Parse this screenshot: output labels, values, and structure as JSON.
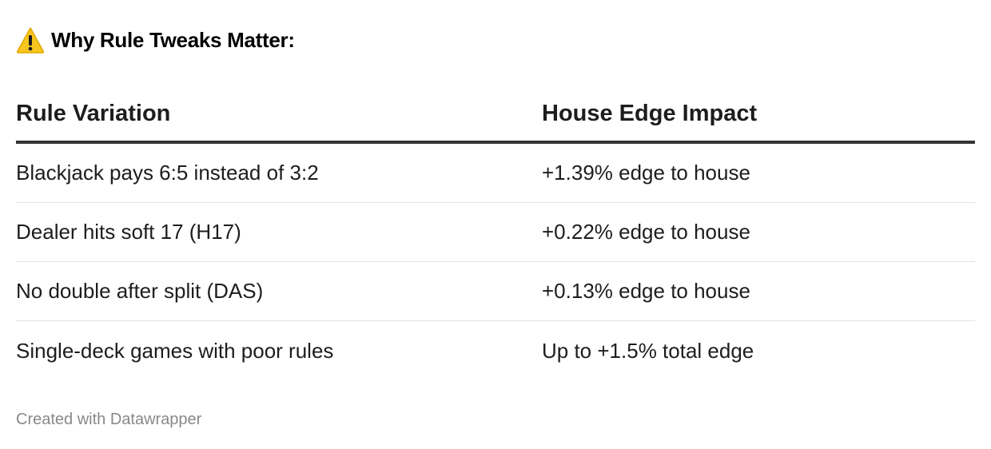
{
  "title": {
    "icon": "warning-icon",
    "text": "Why Rule Tweaks Matter:"
  },
  "chart_data": {
    "type": "table",
    "title": "Why Rule Tweaks Matter:",
    "columns": [
      "Rule Variation",
      "House Edge Impact"
    ],
    "rows": [
      [
        "Blackjack pays 6:5 instead of 3:2",
        "+1.39% edge to house"
      ],
      [
        "Dealer hits soft 17 (H17)",
        "+0.22% edge to house"
      ],
      [
        "No double after split (DAS)",
        "+0.13% edge to house"
      ],
      [
        "Single-deck games with poor rules",
        "Up to +1.5% total edge"
      ]
    ]
  },
  "footer": {
    "credit": "Created with Datawrapper"
  },
  "colors": {
    "header_rule": "#333333",
    "row_divider": "#e2e2e2",
    "footer_text": "#888888",
    "warning_fill": "#f7c51e"
  }
}
